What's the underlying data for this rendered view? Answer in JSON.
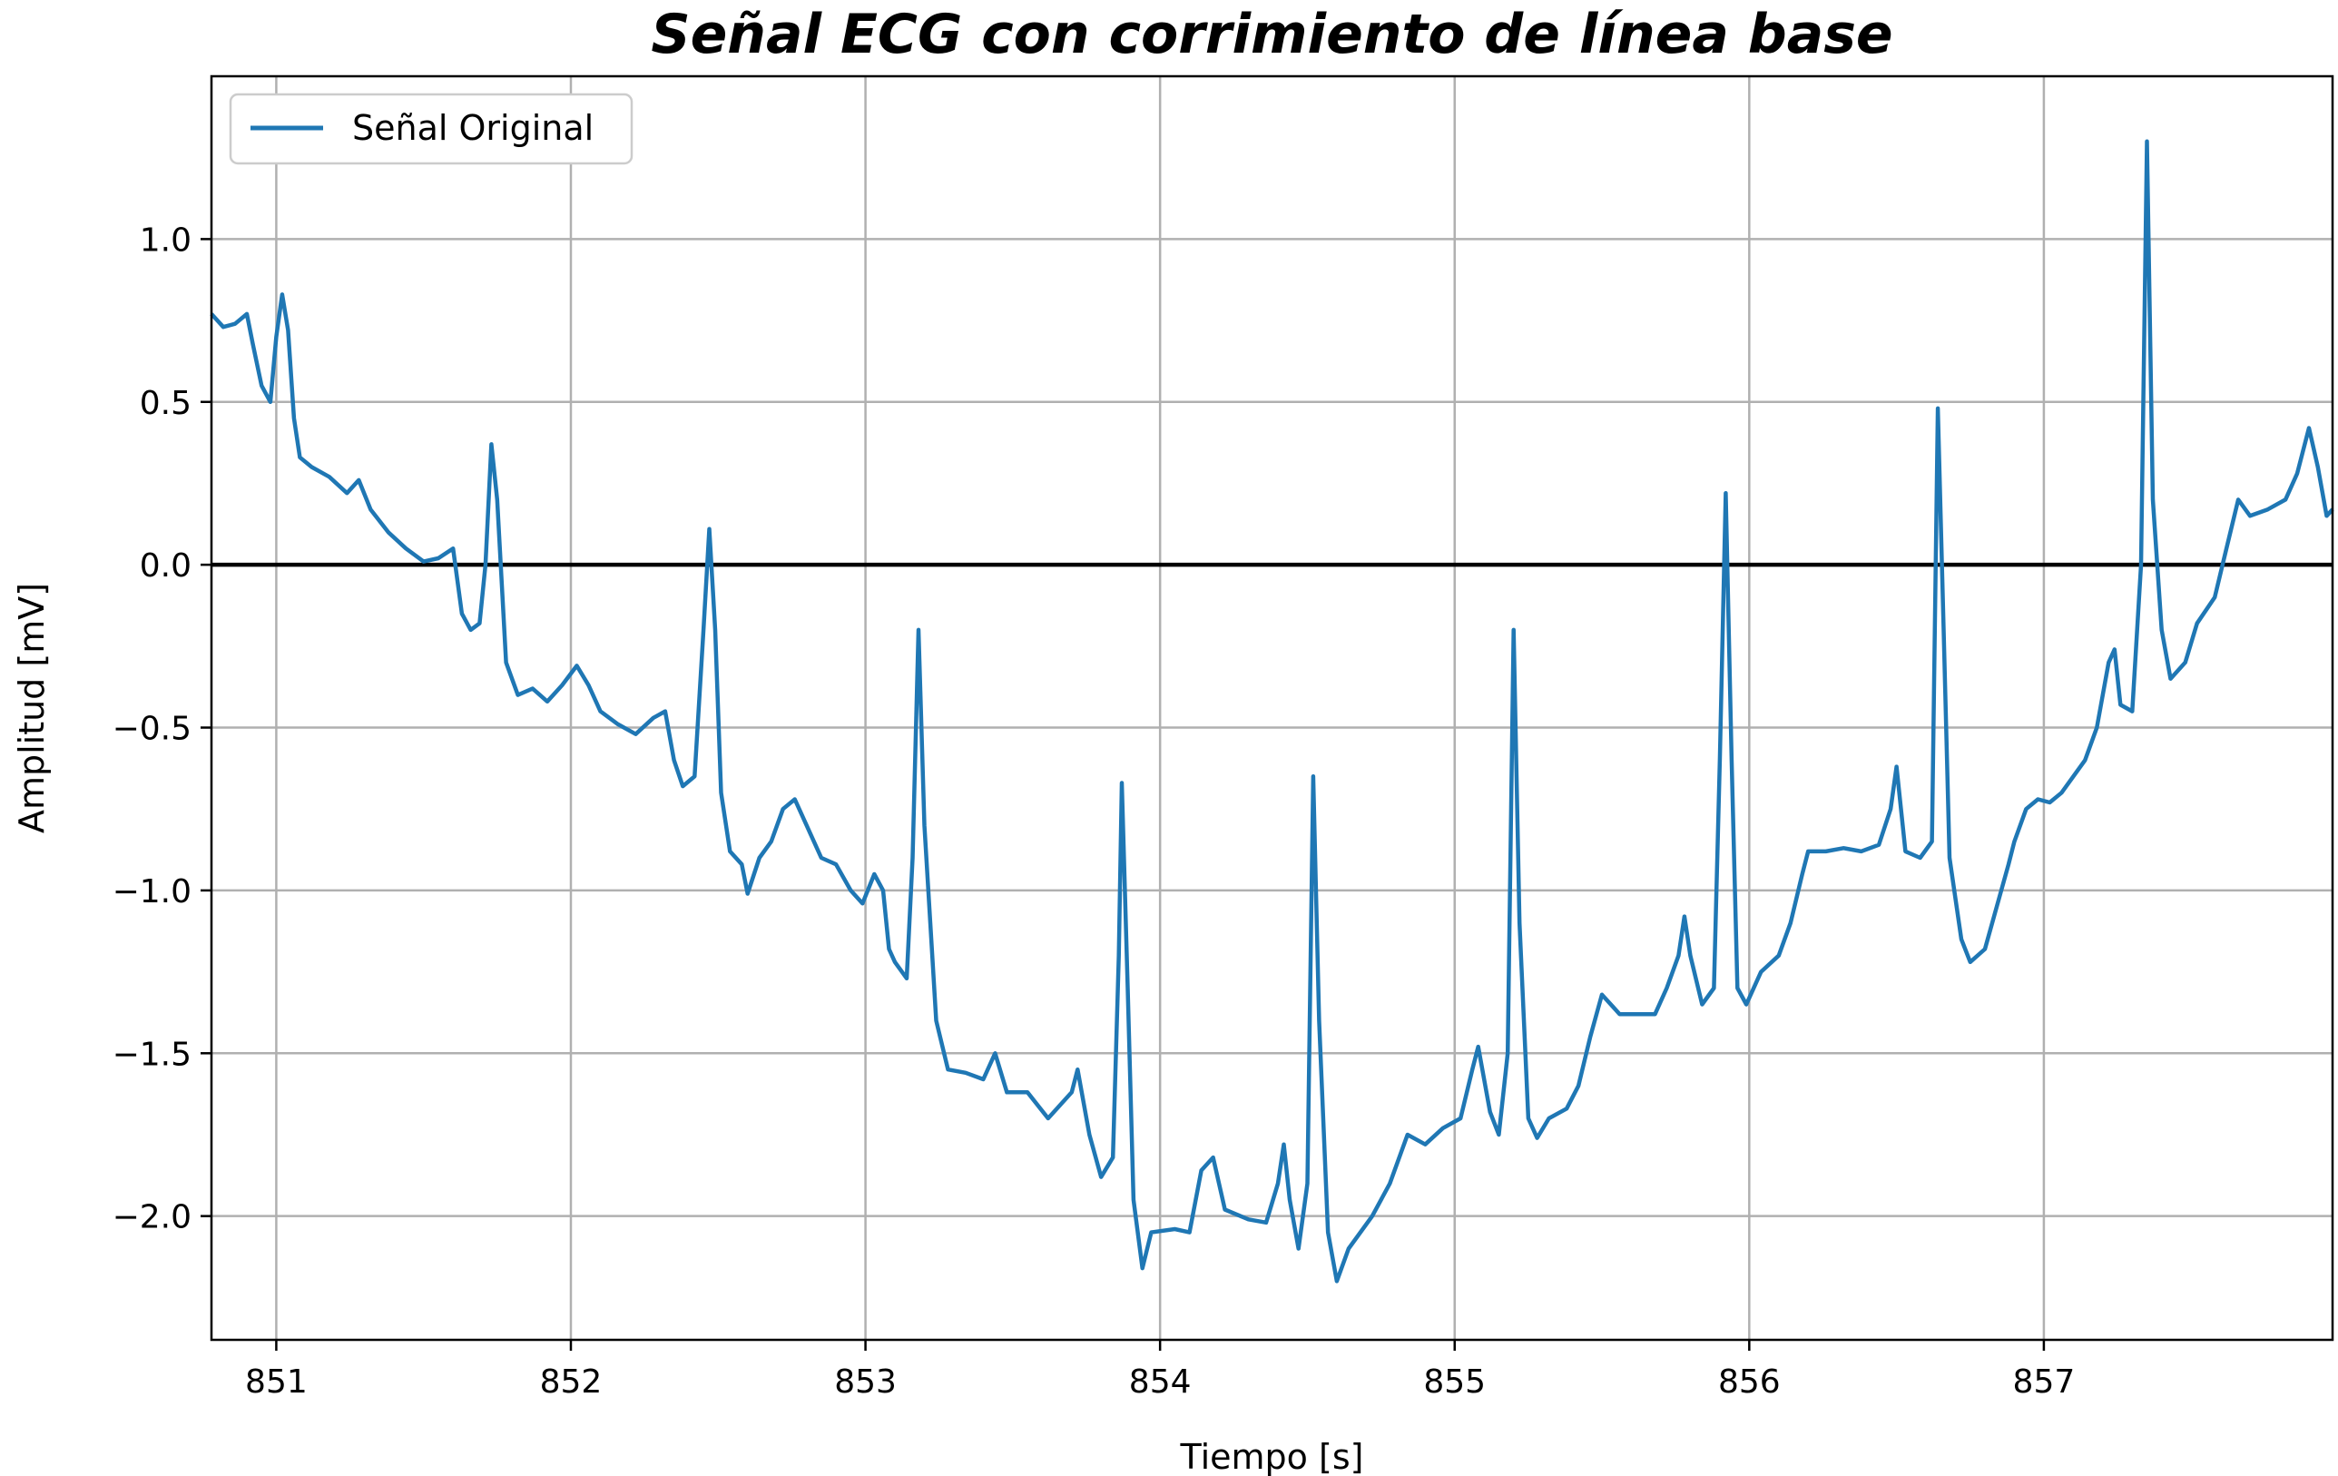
{
  "chart_data": {
    "type": "line",
    "title": "Señal ECG con corrimiento de línea base",
    "xlabel": "Tiempo [s]",
    "ylabel": "Amplitud [mV]",
    "xlim": [
      850.78,
      857.98
    ],
    "ylim": [
      -2.38,
      1.5
    ],
    "x_ticks": [
      851,
      852,
      853,
      854,
      855,
      856,
      857
    ],
    "x_tick_labels": [
      "851",
      "852",
      "853",
      "854",
      "855",
      "856",
      "857"
    ],
    "y_ticks": [
      1.0,
      0.5,
      0.0,
      -0.5,
      -1.0,
      -1.5,
      -2.0
    ],
    "y_tick_labels": [
      "1.0",
      "0.5",
      "0.0",
      "−0.5",
      "−1.0",
      "−1.5",
      "−2.0"
    ],
    "grid": true,
    "legend_position": "top-left",
    "reference_line": {
      "y": 0.0,
      "color": "#000000"
    },
    "series": [
      {
        "name": "Señal Original",
        "color": "#1f77b4",
        "points": [
          [
            850.78,
            0.77
          ],
          [
            850.82,
            0.73
          ],
          [
            850.86,
            0.74
          ],
          [
            850.9,
            0.77
          ],
          [
            850.92,
            0.68
          ],
          [
            850.95,
            0.55
          ],
          [
            850.98,
            0.5
          ],
          [
            851.0,
            0.7
          ],
          [
            851.02,
            0.83
          ],
          [
            851.04,
            0.72
          ],
          [
            851.06,
            0.45
          ],
          [
            851.08,
            0.33
          ],
          [
            851.12,
            0.3
          ],
          [
            851.18,
            0.27
          ],
          [
            851.24,
            0.22
          ],
          [
            851.28,
            0.26
          ],
          [
            851.32,
            0.17
          ],
          [
            851.38,
            0.1
          ],
          [
            851.44,
            0.05
          ],
          [
            851.5,
            0.01
          ],
          [
            851.55,
            0.02
          ],
          [
            851.6,
            0.05
          ],
          [
            851.63,
            -0.15
          ],
          [
            851.66,
            -0.2
          ],
          [
            851.69,
            -0.18
          ],
          [
            851.71,
            0.0
          ],
          [
            851.73,
            0.37
          ],
          [
            851.75,
            0.2
          ],
          [
            851.78,
            -0.3
          ],
          [
            851.82,
            -0.4
          ],
          [
            851.87,
            -0.38
          ],
          [
            851.92,
            -0.42
          ],
          [
            851.97,
            -0.37
          ],
          [
            852.02,
            -0.31
          ],
          [
            852.06,
            -0.37
          ],
          [
            852.1,
            -0.45
          ],
          [
            852.16,
            -0.49
          ],
          [
            852.22,
            -0.52
          ],
          [
            852.28,
            -0.47
          ],
          [
            852.32,
            -0.45
          ],
          [
            852.35,
            -0.6
          ],
          [
            852.38,
            -0.68
          ],
          [
            852.42,
            -0.65
          ],
          [
            852.45,
            -0.2
          ],
          [
            852.47,
            0.11
          ],
          [
            852.49,
            -0.2
          ],
          [
            852.51,
            -0.7
          ],
          [
            852.54,
            -0.88
          ],
          [
            852.58,
            -0.92
          ],
          [
            852.6,
            -1.01
          ],
          [
            852.64,
            -0.9
          ],
          [
            852.68,
            -0.85
          ],
          [
            852.72,
            -0.75
          ],
          [
            852.76,
            -0.72
          ],
          [
            852.8,
            -0.8
          ],
          [
            852.85,
            -0.9
          ],
          [
            852.9,
            -0.92
          ],
          [
            852.95,
            -1.0
          ],
          [
            852.99,
            -1.04
          ],
          [
            853.03,
            -0.95
          ],
          [
            853.06,
            -1.0
          ],
          [
            853.08,
            -1.18
          ],
          [
            853.1,
            -1.22
          ],
          [
            853.14,
            -1.27
          ],
          [
            853.16,
            -0.9
          ],
          [
            853.18,
            -0.2
          ],
          [
            853.2,
            -0.8
          ],
          [
            853.24,
            -1.4
          ],
          [
            853.28,
            -1.55
          ],
          [
            853.34,
            -1.56
          ],
          [
            853.4,
            -1.58
          ],
          [
            853.44,
            -1.5
          ],
          [
            853.48,
            -1.62
          ],
          [
            853.55,
            -1.62
          ],
          [
            853.62,
            -1.7
          ],
          [
            853.7,
            -1.62
          ],
          [
            853.72,
            -1.55
          ],
          [
            853.76,
            -1.75
          ],
          [
            853.8,
            -1.88
          ],
          [
            853.84,
            -1.82
          ],
          [
            853.86,
            -1.2
          ],
          [
            853.87,
            -0.67
          ],
          [
            853.89,
            -1.3
          ],
          [
            853.91,
            -1.95
          ],
          [
            853.94,
            -2.16
          ],
          [
            853.97,
            -2.05
          ],
          [
            854.05,
            -2.04
          ],
          [
            854.1,
            -2.05
          ],
          [
            854.14,
            -1.86
          ],
          [
            854.18,
            -1.82
          ],
          [
            854.22,
            -1.98
          ],
          [
            854.3,
            -2.01
          ],
          [
            854.36,
            -2.02
          ],
          [
            854.4,
            -1.9
          ],
          [
            854.42,
            -1.78
          ],
          [
            854.44,
            -1.95
          ],
          [
            854.47,
            -2.1
          ],
          [
            854.5,
            -1.9
          ],
          [
            854.52,
            -0.65
          ],
          [
            854.54,
            -1.4
          ],
          [
            854.57,
            -2.05
          ],
          [
            854.6,
            -2.2
          ],
          [
            854.64,
            -2.1
          ],
          [
            854.72,
            -2.0
          ],
          [
            854.78,
            -1.9
          ],
          [
            854.84,
            -1.75
          ],
          [
            854.9,
            -1.78
          ],
          [
            854.96,
            -1.73
          ],
          [
            855.02,
            -1.7
          ],
          [
            855.06,
            -1.55
          ],
          [
            855.08,
            -1.48
          ],
          [
            855.12,
            -1.68
          ],
          [
            855.15,
            -1.75
          ],
          [
            855.18,
            -1.5
          ],
          [
            855.2,
            -0.2
          ],
          [
            855.22,
            -1.1
          ],
          [
            855.25,
            -1.7
          ],
          [
            855.28,
            -1.76
          ],
          [
            855.32,
            -1.7
          ],
          [
            855.38,
            -1.67
          ],
          [
            855.42,
            -1.6
          ],
          [
            855.46,
            -1.45
          ],
          [
            855.5,
            -1.32
          ],
          [
            855.56,
            -1.38
          ],
          [
            855.62,
            -1.38
          ],
          [
            855.68,
            -1.38
          ],
          [
            855.72,
            -1.3
          ],
          [
            855.76,
            -1.2
          ],
          [
            855.78,
            -1.08
          ],
          [
            855.8,
            -1.2
          ],
          [
            855.84,
            -1.35
          ],
          [
            855.88,
            -1.3
          ],
          [
            855.9,
            -0.6
          ],
          [
            855.92,
            0.22
          ],
          [
            855.94,
            -0.6
          ],
          [
            855.96,
            -1.3
          ],
          [
            855.99,
            -1.35
          ],
          [
            856.04,
            -1.25
          ],
          [
            856.1,
            -1.2
          ],
          [
            856.14,
            -1.1
          ],
          [
            856.18,
            -0.95
          ],
          [
            856.2,
            -0.88
          ],
          [
            856.26,
            -0.88
          ],
          [
            856.32,
            -0.87
          ],
          [
            856.38,
            -0.88
          ],
          [
            856.44,
            -0.86
          ],
          [
            856.48,
            -0.75
          ],
          [
            856.5,
            -0.62
          ],
          [
            856.53,
            -0.88
          ],
          [
            856.58,
            -0.9
          ],
          [
            856.62,
            -0.85
          ],
          [
            856.64,
            0.48
          ],
          [
            856.66,
            -0.2
          ],
          [
            856.68,
            -0.9
          ],
          [
            856.72,
            -1.15
          ],
          [
            856.75,
            -1.22
          ],
          [
            856.8,
            -1.18
          ],
          [
            856.84,
            -1.05
          ],
          [
            856.88,
            -0.92
          ],
          [
            856.9,
            -0.85
          ],
          [
            856.94,
            -0.75
          ],
          [
            856.98,
            -0.72
          ],
          [
            857.02,
            -0.73
          ],
          [
            857.06,
            -0.7
          ],
          [
            857.1,
            -0.65
          ],
          [
            857.14,
            -0.6
          ],
          [
            857.18,
            -0.5
          ],
          [
            857.2,
            -0.4
          ],
          [
            857.22,
            -0.3
          ],
          [
            857.24,
            -0.26
          ],
          [
            857.26,
            -0.43
          ],
          [
            857.3,
            -0.45
          ],
          [
            857.33,
            0.0
          ],
          [
            857.35,
            1.3
          ],
          [
            857.37,
            0.2
          ],
          [
            857.4,
            -0.2
          ],
          [
            857.43,
            -0.35
          ],
          [
            857.48,
            -0.3
          ],
          [
            857.52,
            -0.18
          ],
          [
            857.58,
            -0.1
          ],
          [
            857.62,
            0.05
          ],
          [
            857.66,
            0.2
          ],
          [
            857.7,
            0.15
          ],
          [
            857.76,
            0.17
          ],
          [
            857.82,
            0.2
          ],
          [
            857.86,
            0.28
          ],
          [
            857.9,
            0.42
          ],
          [
            857.93,
            0.3
          ],
          [
            857.96,
            0.15
          ],
          [
            857.98,
            0.17
          ]
        ]
      }
    ]
  }
}
